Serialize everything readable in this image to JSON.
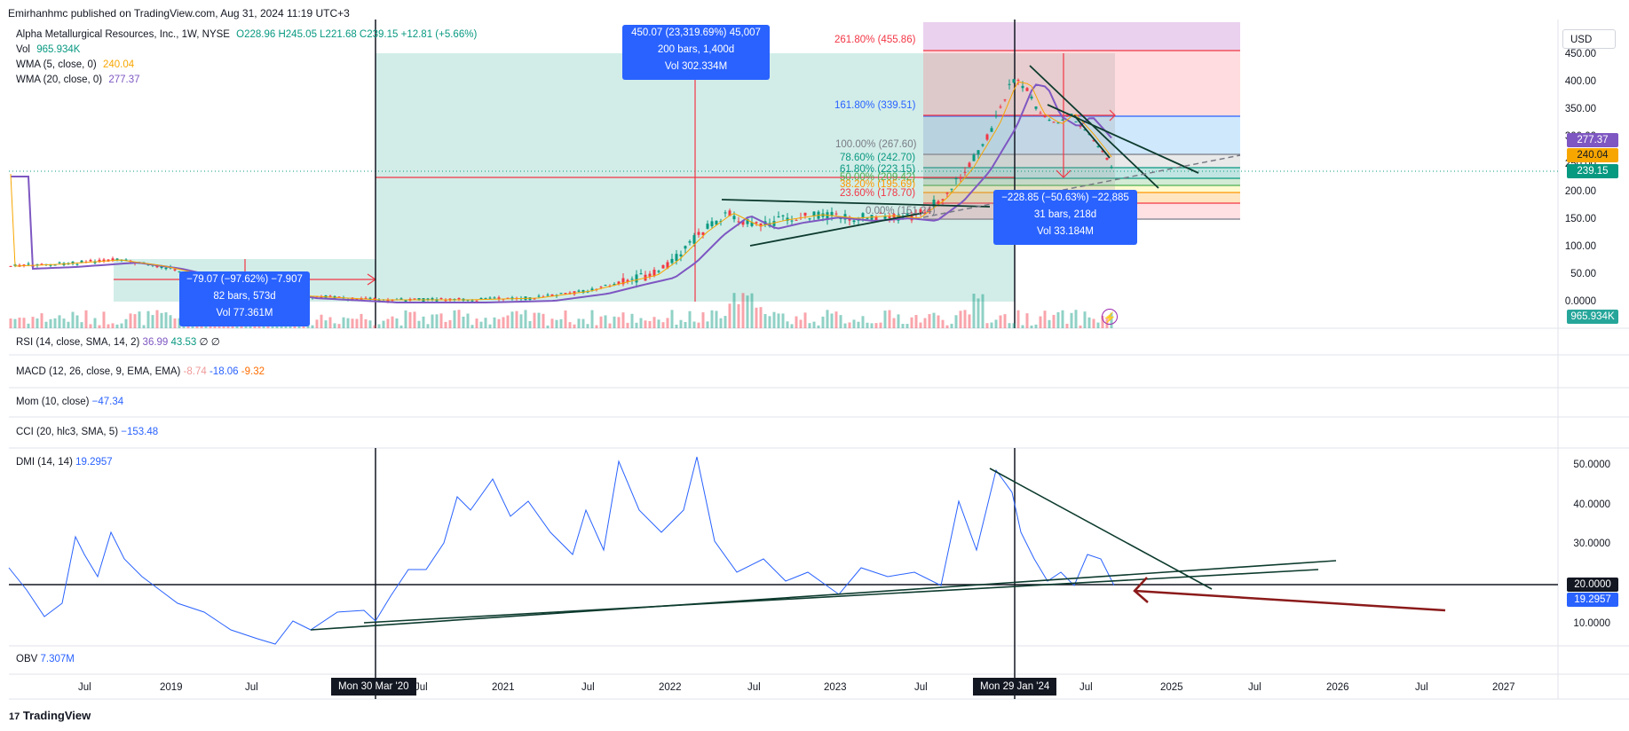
{
  "header": {
    "published": "Emirhanhmc published on TradingView.com, Aug 31, 2024 11:19 UTC+3"
  },
  "legend": {
    "symbol": "Alpha Metallurgical Resources, Inc., 1W, NYSE",
    "ohlc": "O228.96 H245.05 L221.68 C239.15 +12.81 (+5.66%)",
    "vol_label": "Vol",
    "vol_value": "965.934K",
    "wma5_label": "WMA (5, close, 0)",
    "wma5_value": "240.04",
    "wma20_label": "WMA (20, close, 0)",
    "wma20_value": "277.37"
  },
  "currency_button": "USD",
  "price_axis": [
    "450.00",
    "400.00",
    "350.00",
    "300.00",
    "250.00",
    "200.00",
    "150.00",
    "100.00",
    "50.00",
    "0.0000"
  ],
  "price_badges": {
    "wma20": "277.37",
    "wma5": "240.04",
    "last": "239.15",
    "volume": "965.934K"
  },
  "fib_levels": [
    {
      "label": "261.80% (455.86)",
      "color": "#f23645"
    },
    {
      "label": "161.80% (339.51)",
      "color": "#2962ff"
    },
    {
      "label": "100.00% (267.60)",
      "color": "#787b86"
    },
    {
      "label": "78.60% (242.70)",
      "color": "#089981"
    },
    {
      "label": "61.80% (223.15)",
      "color": "#089981"
    },
    {
      "label": "50.00% (209.42)",
      "color": "#4caf50"
    },
    {
      "label": "38.20% (195.69)",
      "color": "#ff9800"
    },
    {
      "label": "23.60% (178.70)",
      "color": "#f23645"
    },
    {
      "label": "0.00% (151.24)",
      "color": "#787b86"
    }
  ],
  "measure_boxes": [
    {
      "line1": "450.07 (23,319.69%) 45,007",
      "line2": "200 bars, 1,400d",
      "line3": "Vol 302.334M"
    },
    {
      "line1": "−79.07 (−97.62%) −7.907",
      "line2": "82 bars, 573d",
      "line3": "Vol 77.361M"
    },
    {
      "line1": "−228.85 (−50.63%) −22,885",
      "line2": "31 bars, 218d",
      "line3": "Vol 33.184M"
    }
  ],
  "panes": {
    "rsi": {
      "label": "RSI (14, close, SMA, 14, 2)",
      "v1": "36.99",
      "v2": "43.53",
      "v3": "∅",
      "v4": "∅"
    },
    "macd": {
      "label": "MACD (12, 26, close, 9, EMA, EMA)",
      "v1": "-8.74",
      "v2": "-18.06",
      "v3": "-9.32"
    },
    "mom": {
      "label": "Mom (10, close)",
      "v1": "−47.34"
    },
    "cci": {
      "label": "CCI (20, hlc3, SMA, 5)",
      "v1": "−153.48"
    },
    "dmi": {
      "label": "DMI (14, 14)",
      "v1": "19.2957"
    },
    "obv": {
      "label": "OBV",
      "v1": "7.307M"
    }
  },
  "dmi_axis": [
    "50.0000",
    "40.0000",
    "30.0000",
    "10.0000"
  ],
  "dmi_badges": {
    "level": "20.0000",
    "value": "19.2957"
  },
  "time_axis": [
    "Jul",
    "2019",
    "Jul",
    "Jul",
    "2021",
    "Jul",
    "2022",
    "Jul",
    "2023",
    "Jul",
    "Jul",
    "2025",
    "Jul",
    "2026",
    "Jul",
    "2027"
  ],
  "date_markers": [
    "Mon 30 Mar '20",
    "Mon 29 Jan '24"
  ],
  "footer_logo": "TradingView",
  "colors": {
    "up": "#089981",
    "down": "#f23645",
    "wma5": "#f7a600",
    "wma20": "#7e57c2",
    "dmi": "#2962ff",
    "measure": "#2962ff"
  }
}
